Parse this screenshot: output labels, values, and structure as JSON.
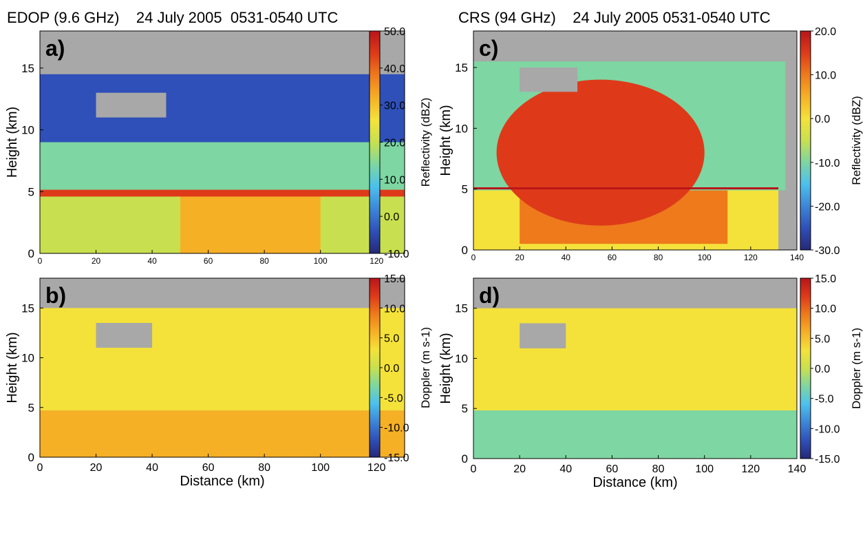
{
  "figure": {
    "left_title": "EDOP (9.6 GHz)    24 July 2005  0531-0540 UTC",
    "right_title": "CRS (94 GHz)    24 July 2005 0531-0540 UTC"
  },
  "chart_data": [
    {
      "type": "heatmap",
      "panel": "a)",
      "instrument": "EDOP (9.6 GHz)",
      "xlabel": "",
      "ylabel": "Height (km)",
      "xlim": [
        0,
        130
      ],
      "ylim": [
        0,
        18
      ],
      "xticks": [
        "0",
        "20",
        "40",
        "60",
        "80",
        "100",
        "120"
      ],
      "yticks": [
        "0",
        "5",
        "10",
        "15"
      ],
      "colorbar_label": "Reflectivity (dBZ)",
      "colorbar_ticks": [
        "50.0",
        "40.0",
        "30.0",
        "20.0",
        "10.0",
        "0.0",
        "-10.0"
      ],
      "clim": [
        -10,
        50
      ],
      "colorscale": [
        "#26287a",
        "#2f50b8",
        "#3d86d8",
        "#4cc0ee",
        "#7ed6a2",
        "#c8e050",
        "#f4e23a",
        "#f6b026",
        "#ee7a1c",
        "#de3a1a",
        "#b8151a"
      ],
      "features": {
        "melting_layer_km": 4.8,
        "cloud_top_km": 14.5,
        "max_dbz_band_km": [
          50,
          100
        ]
      }
    },
    {
      "type": "heatmap",
      "panel": "b)",
      "instrument": "EDOP (9.6 GHz)",
      "xlabel": "Distance (km)",
      "ylabel": "Height (km)",
      "xlim": [
        0,
        130
      ],
      "ylim": [
        0,
        18
      ],
      "xticks": [
        "0",
        "20",
        "40",
        "60",
        "80",
        "100",
        "120"
      ],
      "yticks": [
        "0",
        "5",
        "10",
        "15"
      ],
      "colorbar_label": "Doppler (m s-1)",
      "colorbar_ticks": [
        "15.0",
        "10.0",
        "5.0",
        "0.0",
        "-5.0",
        "-10.0",
        "-15.0"
      ],
      "clim": [
        -15,
        15
      ],
      "colorscale": [
        "#26287a",
        "#2f50b8",
        "#3d86d8",
        "#4cc0ee",
        "#7ed6a2",
        "#c8e050",
        "#f4e23a",
        "#f6b026",
        "#ee7a1c",
        "#de3a1a",
        "#b8151a"
      ],
      "features": {
        "melting_layer_km": 4.7,
        "cloud_top_km": 15
      }
    },
    {
      "type": "heatmap",
      "panel": "c)",
      "instrument": "CRS (94 GHz)",
      "xlabel": "",
      "ylabel": "Height (km)",
      "xlim": [
        0,
        140
      ],
      "ylim": [
        0,
        18
      ],
      "xticks": [
        "0",
        "20",
        "40",
        "60",
        "80",
        "100",
        "120",
        "140"
      ],
      "yticks": [
        "0",
        "5",
        "10",
        "15"
      ],
      "colorbar_label": "Reflectivity (dBZ)",
      "colorbar_ticks": [
        "20.0",
        "10.0",
        "0.0",
        "-10.0",
        "-20.0",
        "-30.0"
      ],
      "clim": [
        -30,
        20
      ],
      "colorscale": [
        "#26287a",
        "#2f50b8",
        "#3d86d8",
        "#4cc0ee",
        "#7ed6a2",
        "#c8e050",
        "#f4e23a",
        "#f6b026",
        "#ee7a1c",
        "#de3a1a",
        "#b8151a"
      ],
      "features": {
        "melting_layer_km": 4.9,
        "cloud_top_km": 15.5
      }
    },
    {
      "type": "heatmap",
      "panel": "d)",
      "instrument": "CRS (94 GHz)",
      "xlabel": "Distance (km)",
      "ylabel": "Height (km)",
      "xlim": [
        0,
        140
      ],
      "ylim": [
        0,
        18
      ],
      "xticks": [
        "0",
        "20",
        "40",
        "60",
        "80",
        "100",
        "120",
        "140"
      ],
      "yticks": [
        "0",
        "5",
        "10",
        "15"
      ],
      "colorbar_label": "Doppler (m s-1)",
      "colorbar_ticks": [
        "15.0",
        "10.0",
        "5.0",
        "0.0",
        "-5.0",
        "-10.0",
        "-15.0"
      ],
      "clim": [
        -15,
        15
      ],
      "colorscale": [
        "#26287a",
        "#2f50b8",
        "#3d86d8",
        "#4cc0ee",
        "#7ed6a2",
        "#c8e050",
        "#f4e23a",
        "#f6b026",
        "#ee7a1c",
        "#de3a1a",
        "#b8151a"
      ],
      "features": {
        "melting_layer_km": 4.8,
        "cloud_top_km": 15
      }
    }
  ]
}
